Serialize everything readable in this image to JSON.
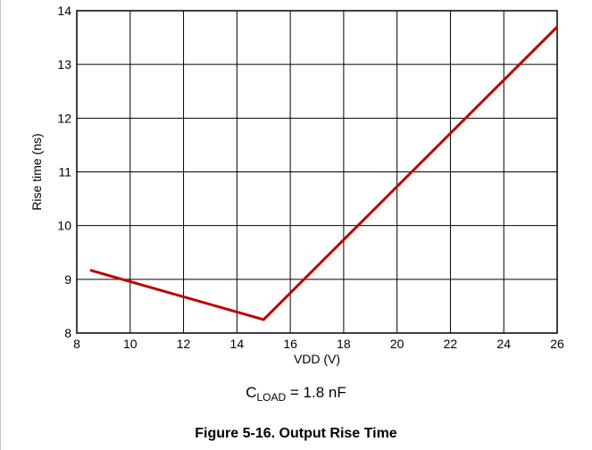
{
  "chart_data": {
    "type": "line",
    "title": "",
    "xlabel": "VDD (V)",
    "ylabel": "Rise time (ns)",
    "xlim": [
      8,
      26
    ],
    "ylim": [
      8,
      14
    ],
    "x_ticks": [
      "8",
      "10",
      "12",
      "14",
      "16",
      "18",
      "20",
      "22",
      "24",
      "26"
    ],
    "y_ticks": [
      "8",
      "9",
      "10",
      "11",
      "12",
      "13",
      "14"
    ],
    "grid": true,
    "line_color": "#c00000",
    "series": [
      {
        "x": [
          8.5,
          15,
          26
        ],
        "y": [
          9.17,
          8.25,
          13.7
        ]
      }
    ],
    "annotation": {
      "symbol": "C",
      "subscript": "LOAD",
      "text": " = 1.8 nF"
    }
  },
  "caption": "Figure 5-16. Output Rise Time"
}
